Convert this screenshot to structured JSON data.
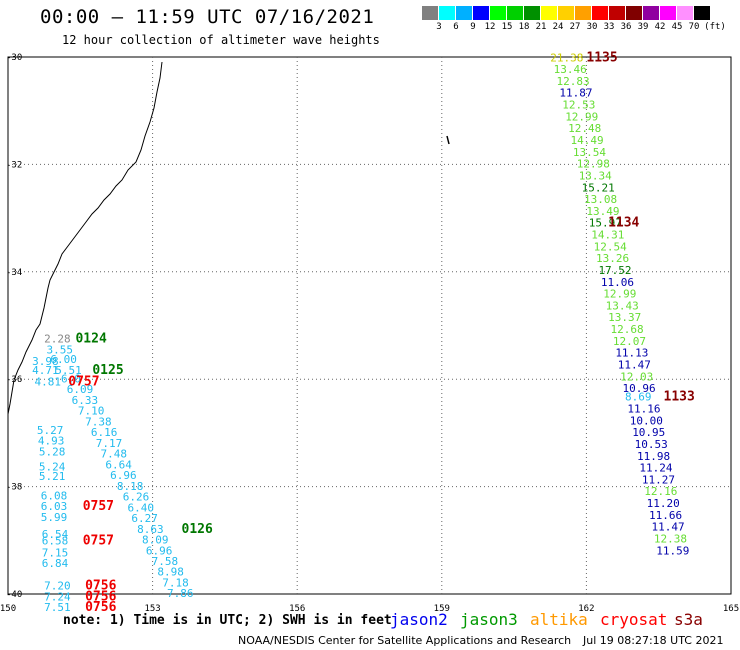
{
  "header": {
    "title": "00:00 – 11:59 UTC 07/16/2021",
    "subtitle": "12 hour collection of altimeter wave heights"
  },
  "legend": {
    "unit": "(ft)",
    "bins": [
      {
        "color": "#808080",
        "label": "3"
      },
      {
        "color": "#00ffff",
        "label": "6"
      },
      {
        "color": "#00b0ff",
        "label": "9"
      },
      {
        "color": "#0000ff",
        "label": "12"
      },
      {
        "color": "#00ff00",
        "label": "15"
      },
      {
        "color": "#00d000",
        "label": "18"
      },
      {
        "color": "#009000",
        "label": "21"
      },
      {
        "color": "#ffff00",
        "label": "24"
      },
      {
        "color": "#ffd000",
        "label": "27"
      },
      {
        "color": "#ffa000",
        "label": "30"
      },
      {
        "color": "#ff0000",
        "label": "33"
      },
      {
        "color": "#c00000",
        "label": "36"
      },
      {
        "color": "#800000",
        "label": "39"
      },
      {
        "color": "#9000a0",
        "label": "42"
      },
      {
        "color": "#ff00ff",
        "label": "45"
      },
      {
        "color": "#ff90ff",
        "label": "70"
      },
      {
        "color": "#000000",
        "label": ""
      }
    ]
  },
  "axes": {
    "lon_ticks": [
      "150",
      "153",
      "156",
      "159",
      "162",
      "165"
    ],
    "lat_ticks": [
      "-30",
      "-32",
      "-34",
      "-36",
      "-38",
      "-40"
    ]
  },
  "colors": {
    "light_green": "#66dd33",
    "dark_blue": "#0000aa",
    "cyan": "#22bbee",
    "gray": "#888888",
    "dark_green": "#007700",
    "dark_red": "#880000",
    "red": "#ee0000"
  },
  "tracks": [
    {
      "name": "east-track",
      "points": [
        {
          "lon": 161.25,
          "lat": -30.08,
          "swh": "21.38",
          "c": "#cccc00"
        },
        {
          "lon": 161.32,
          "lat": -30.3,
          "swh": "13.46",
          "c": "#66dd33"
        },
        {
          "lon": 161.38,
          "lat": -30.52,
          "swh": "12.83",
          "c": "#66dd33"
        },
        {
          "lon": 161.44,
          "lat": -30.74,
          "swh": "11.87",
          "c": "#0000aa"
        },
        {
          "lon": 161.5,
          "lat": -30.96,
          "swh": "12.53",
          "c": "#66dd33"
        },
        {
          "lon": 161.56,
          "lat": -31.18,
          "swh": "12.99",
          "c": "#66dd33"
        },
        {
          "lon": 161.62,
          "lat": -31.4,
          "swh": "12.48",
          "c": "#66dd33"
        },
        {
          "lon": 161.67,
          "lat": -31.62,
          "swh": "14.49",
          "c": "#66dd33"
        },
        {
          "lon": 161.72,
          "lat": -31.84,
          "swh": "13.54",
          "c": "#66dd33"
        },
        {
          "lon": 161.8,
          "lat": -32.06,
          "swh": "12.98",
          "c": "#66dd33"
        },
        {
          "lon": 161.84,
          "lat": -32.28,
          "swh": "13.34",
          "c": "#66dd33"
        },
        {
          "lon": 161.9,
          "lat": -32.5,
          "swh": "15.21",
          "c": "#007700"
        },
        {
          "lon": 161.95,
          "lat": -32.72,
          "swh": "13.08",
          "c": "#66dd33"
        },
        {
          "lon": 162.0,
          "lat": -32.94,
          "swh": "13.49",
          "c": "#66dd33"
        },
        {
          "lon": 162.05,
          "lat": -33.16,
          "swh": "15.97",
          "c": "#007700"
        },
        {
          "lon": 162.1,
          "lat": -33.38,
          "swh": "14.31",
          "c": "#66dd33"
        },
        {
          "lon": 162.15,
          "lat": -33.6,
          "swh": "12.54",
          "c": "#66dd33"
        },
        {
          "lon": 162.2,
          "lat": -33.82,
          "swh": "13.26",
          "c": "#66dd33"
        },
        {
          "lon": 162.25,
          "lat": -34.04,
          "swh": "17.52",
          "c": "#007700"
        },
        {
          "lon": 162.3,
          "lat": -34.26,
          "swh": "11.06",
          "c": "#0000aa"
        },
        {
          "lon": 162.35,
          "lat": -34.48,
          "swh": "12.99",
          "c": "#66dd33"
        },
        {
          "lon": 162.4,
          "lat": -34.7,
          "swh": "13.43",
          "c": "#66dd33"
        },
        {
          "lon": 162.45,
          "lat": -34.92,
          "swh": "13.37",
          "c": "#66dd33"
        },
        {
          "lon": 162.5,
          "lat": -35.14,
          "swh": "12.68",
          "c": "#66dd33"
        },
        {
          "lon": 162.55,
          "lat": -35.36,
          "swh": "12.07",
          "c": "#66dd33"
        },
        {
          "lon": 162.6,
          "lat": -35.58,
          "swh": "11.13",
          "c": "#0000aa"
        },
        {
          "lon": 162.65,
          "lat": -35.8,
          "swh": "11.47",
          "c": "#0000aa"
        },
        {
          "lon": 162.7,
          "lat": -36.02,
          "swh": "12.03",
          "c": "#66dd33"
        },
        {
          "lon": 162.75,
          "lat": -36.24,
          "swh": "10.96",
          "c": "#0000aa"
        },
        {
          "lon": 162.8,
          "lat": -36.4,
          "swh": "8.69",
          "c": "#22bbee"
        },
        {
          "lon": 162.85,
          "lat": -36.62,
          "swh": "11.16",
          "c": "#0000aa"
        },
        {
          "lon": 162.9,
          "lat": -36.84,
          "swh": "10.00",
          "c": "#0000aa"
        },
        {
          "lon": 162.95,
          "lat": -37.06,
          "swh": "10.95",
          "c": "#0000aa"
        },
        {
          "lon": 163.0,
          "lat": -37.28,
          "swh": "10.53",
          "c": "#0000aa"
        },
        {
          "lon": 163.05,
          "lat": -37.5,
          "swh": "11.98",
          "c": "#0000aa"
        },
        {
          "lon": 163.1,
          "lat": -37.72,
          "swh": "11.24",
          "c": "#0000aa"
        },
        {
          "lon": 163.15,
          "lat": -37.94,
          "swh": "11.27",
          "c": "#0000aa"
        },
        {
          "lon": 163.2,
          "lat": -38.16,
          "swh": "12.16",
          "c": "#66dd33"
        },
        {
          "lon": 163.25,
          "lat": -38.38,
          "swh": "11.20",
          "c": "#0000aa"
        },
        {
          "lon": 163.3,
          "lat": -38.6,
          "swh": "11.66",
          "c": "#0000aa"
        },
        {
          "lon": 163.35,
          "lat": -38.82,
          "swh": "11.47",
          "c": "#0000aa"
        },
        {
          "lon": 163.4,
          "lat": -39.04,
          "swh": "12.38",
          "c": "#66dd33"
        },
        {
          "lon": 163.45,
          "lat": -39.26,
          "swh": "11.59",
          "c": "#0000aa"
        }
      ]
    },
    {
      "name": "west-track-a",
      "points": [
        {
          "lon": 150.75,
          "lat": -35.32,
          "swh": "2.28",
          "c": "#888888"
        },
        {
          "lon": 150.8,
          "lat": -35.52,
          "swh": "3.55",
          "c": "#22bbee"
        },
        {
          "lon": 150.88,
          "lat": -35.7,
          "swh": "6.00",
          "c": "#22bbee"
        },
        {
          "lon": 150.98,
          "lat": -35.9,
          "swh": "5.51",
          "c": "#22bbee"
        },
        {
          "lon": 151.1,
          "lat": -36.06,
          "swh": "6.0",
          "c": "#22bbee"
        },
        {
          "lon": 151.22,
          "lat": -36.26,
          "swh": "6.09",
          "c": "#22bbee"
        },
        {
          "lon": 151.32,
          "lat": -36.46,
          "swh": "6.33",
          "c": "#22bbee"
        },
        {
          "lon": 151.45,
          "lat": -36.66,
          "swh": "7.10",
          "c": "#22bbee"
        },
        {
          "lon": 151.6,
          "lat": -36.86,
          "swh": "7.38",
          "c": "#22bbee"
        },
        {
          "lon": 151.72,
          "lat": -37.06,
          "swh": "6.16",
          "c": "#22bbee"
        },
        {
          "lon": 151.82,
          "lat": -37.26,
          "swh": "7.17",
          "c": "#22bbee"
        },
        {
          "lon": 151.92,
          "lat": -37.46,
          "swh": "7.48",
          "c": "#22bbee"
        },
        {
          "lon": 152.02,
          "lat": -37.66,
          "swh": "6.64",
          "c": "#22bbee"
        },
        {
          "lon": 152.12,
          "lat": -37.86,
          "swh": "6.96",
          "c": "#22bbee"
        },
        {
          "lon": 152.26,
          "lat": -38.06,
          "swh": "8.18",
          "c": "#22bbee"
        },
        {
          "lon": 152.38,
          "lat": -38.26,
          "swh": "6.26",
          "c": "#22bbee"
        },
        {
          "lon": 152.48,
          "lat": -38.46,
          "swh": "6.40",
          "c": "#22bbee"
        },
        {
          "lon": 152.56,
          "lat": -38.66,
          "swh": "6.27",
          "c": "#22bbee"
        },
        {
          "lon": 152.68,
          "lat": -38.86,
          "swh": "8.63",
          "c": "#22bbee"
        },
        {
          "lon": 152.78,
          "lat": -39.06,
          "swh": "8.09",
          "c": "#22bbee"
        },
        {
          "lon": 152.86,
          "lat": -39.26,
          "swh": "6.96",
          "c": "#22bbee"
        },
        {
          "lon": 152.98,
          "lat": -39.46,
          "swh": "7.58",
          "c": "#22bbee"
        },
        {
          "lon": 153.1,
          "lat": -39.66,
          "swh": "8.98",
          "c": "#22bbee"
        },
        {
          "lon": 153.2,
          "lat": -39.86,
          "swh": "7.18",
          "c": "#22bbee"
        },
        {
          "lon": 153.3,
          "lat": -40.06,
          "swh": "7.86",
          "c": "#22bbee"
        }
      ]
    },
    {
      "name": "west-track-b",
      "points": [
        {
          "lon": 150.5,
          "lat": -35.74,
          "swh": "3.98",
          "c": "#22bbee"
        },
        {
          "lon": 150.5,
          "lat": -35.9,
          "swh": "4.71",
          "c": "#22bbee"
        },
        {
          "lon": 150.55,
          "lat": -36.12,
          "swh": "4.81",
          "c": "#22bbee"
        },
        {
          "lon": 150.6,
          "lat": -37.02,
          "swh": "5.27",
          "c": "#22bbee"
        },
        {
          "lon": 150.62,
          "lat": -37.22,
          "swh": "4.93",
          "c": "#22bbee"
        },
        {
          "lon": 150.64,
          "lat": -37.42,
          "swh": "5.28",
          "c": "#22bbee"
        },
        {
          "lon": 150.64,
          "lat": -37.7,
          "swh": "5.24",
          "c": "#22bbee"
        },
        {
          "lon": 150.64,
          "lat": -37.88,
          "swh": "5.21",
          "c": "#22bbee"
        },
        {
          "lon": 150.68,
          "lat": -38.24,
          "swh": "6.08",
          "c": "#22bbee"
        },
        {
          "lon": 150.68,
          "lat": -38.44,
          "swh": "6.03",
          "c": "#22bbee"
        },
        {
          "lon": 150.68,
          "lat": -38.64,
          "swh": "5.99",
          "c": "#22bbee"
        },
        {
          "lon": 150.7,
          "lat": -38.96,
          "swh": "6.54",
          "c": "#22bbee"
        },
        {
          "lon": 150.7,
          "lat": -39.08,
          "swh": "6.58",
          "c": "#22bbee"
        },
        {
          "lon": 150.7,
          "lat": -39.3,
          "swh": "7.15",
          "c": "#22bbee"
        },
        {
          "lon": 150.7,
          "lat": -39.5,
          "swh": "6.84",
          "c": "#22bbee"
        },
        {
          "lon": 150.75,
          "lat": -39.92,
          "swh": "7.20",
          "c": "#22bbee"
        },
        {
          "lon": 150.75,
          "lat": -40.12,
          "swh": "7.24",
          "c": "#22bbee"
        },
        {
          "lon": 150.75,
          "lat": -40.32,
          "swh": "7.51",
          "c": "#22bbee"
        }
      ]
    }
  ],
  "time_labels": [
    {
      "lon": 162.0,
      "lat": -30.08,
      "text": "1135",
      "c": "#880000"
    },
    {
      "lon": 162.45,
      "lat": -33.16,
      "text": "1134",
      "c": "#880000"
    },
    {
      "lon": 163.6,
      "lat": -36.4,
      "text": "1133",
      "c": "#880000"
    },
    {
      "lon": 151.4,
      "lat": -35.32,
      "text": "0124",
      "c": "#007700"
    },
    {
      "lon": 151.75,
      "lat": -35.9,
      "text": "0125",
      "c": "#007700"
    },
    {
      "lon": 153.6,
      "lat": -38.86,
      "text": "0126",
      "c": "#007700"
    },
    {
      "lon": 151.25,
      "lat": -36.12,
      "text": "0757",
      "c": "#ee0000"
    },
    {
      "lon": 151.55,
      "lat": -38.44,
      "text": "0757",
      "c": "#ee0000"
    },
    {
      "lon": 151.55,
      "lat": -39.08,
      "text": "0757",
      "c": "#ee0000"
    },
    {
      "lon": 151.6,
      "lat": -39.92,
      "text": "0756",
      "c": "#ee0000"
    },
    {
      "lon": 151.6,
      "lat": -40.12,
      "text": "0756",
      "c": "#ee0000"
    },
    {
      "lon": 151.6,
      "lat": -40.32,
      "text": "0756",
      "c": "#ee0000"
    }
  ],
  "footer": {
    "note": "note: 1) Time is in UTC; 2) SWH is in feet",
    "missions": [
      {
        "label": "jason2",
        "color": "#0000ee"
      },
      {
        "label": "jason3",
        "color": "#009900"
      },
      {
        "label": "altika",
        "color": "#ff9900"
      },
      {
        "label": "cryosat",
        "color": "#ff0000"
      },
      {
        "label": "s3a",
        "color": "#880000"
      }
    ],
    "credit": "NOAA/NESDIS Center for Satellite Applications and Research",
    "timestamp": "Jul 19 08:27:18 UTC 2021"
  }
}
